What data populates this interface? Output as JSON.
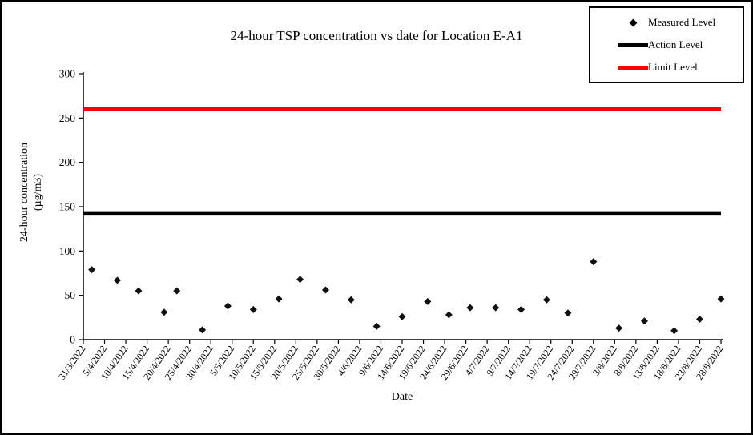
{
  "window": {
    "background": "#ffffff",
    "frame_border": "#000000"
  },
  "chart_data": {
    "type": "scatter",
    "title": "24-hour TSP concentration vs date for Location E-A1",
    "xlabel": "Date",
    "ylabel_lines": [
      "24-hour concentration",
      "(µg/m3)"
    ],
    "ylim": [
      0,
      300
    ],
    "y_ticks": [
      0,
      50,
      100,
      150,
      200,
      250,
      300
    ],
    "x_range_days": [
      0,
      150
    ],
    "x_tick_interval_days": 5,
    "x_tick_labels": [
      "31/3/2022",
      "5/4/2022",
      "10/4/2022",
      "15/4/2022",
      "20/4/2022",
      "25/4/2022",
      "30/4/2022",
      "5/5/2022",
      "10/5/2022",
      "15/5/2022",
      "20/5/2022",
      "25/5/2022",
      "30/5/2022",
      "4/6/2022",
      "9/6/2022",
      "14/6/2022",
      "19/6/2022",
      "24/6/2022",
      "29/6/2022",
      "4/7/2022",
      "9/7/2022",
      "14/7/2022",
      "19/7/2022",
      "24/7/2022",
      "29/7/2022",
      "3/8/2022",
      "8/8/2022",
      "13/8/2022",
      "18/8/2022",
      "23/8/2022",
      "28/8/2022"
    ],
    "grid": false,
    "legend": {
      "position": "top-right",
      "entries": [
        {
          "label": "Measured Level",
          "marker": "diamond",
          "color": "#000000"
        },
        {
          "label": "Action Level",
          "marker": "line",
          "color": "#000000"
        },
        {
          "label": "Limit Level",
          "marker": "line",
          "color": "#ff0000"
        }
      ]
    },
    "series": [
      {
        "name": "Measured Level",
        "type": "scatter",
        "marker": "diamond",
        "color": "#111111",
        "points": [
          {
            "date": "2/4/2022",
            "day": 2,
            "value": 79
          },
          {
            "date": "8/4/2022",
            "day": 8,
            "value": 67
          },
          {
            "date": "13/4/2022",
            "day": 13,
            "value": 55
          },
          {
            "date": "19/4/2022",
            "day": 19,
            "value": 31
          },
          {
            "date": "22/4/2022",
            "day": 22,
            "value": 55
          },
          {
            "date": "28/4/2022",
            "day": 28,
            "value": 11
          },
          {
            "date": "4/5/2022",
            "day": 34,
            "value": 38
          },
          {
            "date": "10/5/2022",
            "day": 40,
            "value": 34
          },
          {
            "date": "16/5/2022",
            "day": 46,
            "value": 46
          },
          {
            "date": "21/5/2022",
            "day": 51,
            "value": 68
          },
          {
            "date": "27/5/2022",
            "day": 57,
            "value": 56
          },
          {
            "date": "2/6/2022",
            "day": 63,
            "value": 45
          },
          {
            "date": "8/6/2022",
            "day": 69,
            "value": 15
          },
          {
            "date": "14/6/2022",
            "day": 75,
            "value": 26
          },
          {
            "date": "20/6/2022",
            "day": 81,
            "value": 43
          },
          {
            "date": "25/6/2022",
            "day": 86,
            "value": 28
          },
          {
            "date": "30/6/2022",
            "day": 91,
            "value": 36
          },
          {
            "date": "6/7/2022",
            "day": 97,
            "value": 36
          },
          {
            "date": "12/7/2022",
            "day": 103,
            "value": 34
          },
          {
            "date": "18/7/2022",
            "day": 109,
            "value": 45
          },
          {
            "date": "23/7/2022",
            "day": 114,
            "value": 30
          },
          {
            "date": "29/7/2022",
            "day": 120,
            "value": 88
          },
          {
            "date": "4/8/2022",
            "day": 126,
            "value": 13
          },
          {
            "date": "10/8/2022",
            "day": 132,
            "value": 21
          },
          {
            "date": "17/8/2022",
            "day": 139,
            "value": 10
          },
          {
            "date": "23/8/2022",
            "day": 145,
            "value": 23
          },
          {
            "date": "28/8/2022",
            "day": 150,
            "value": 46
          }
        ]
      },
      {
        "name": "Action Level",
        "type": "hline",
        "value": 142,
        "color": "#000000"
      },
      {
        "name": "Limit Level",
        "type": "hline",
        "value": 260,
        "color": "#ff0000"
      }
    ]
  }
}
